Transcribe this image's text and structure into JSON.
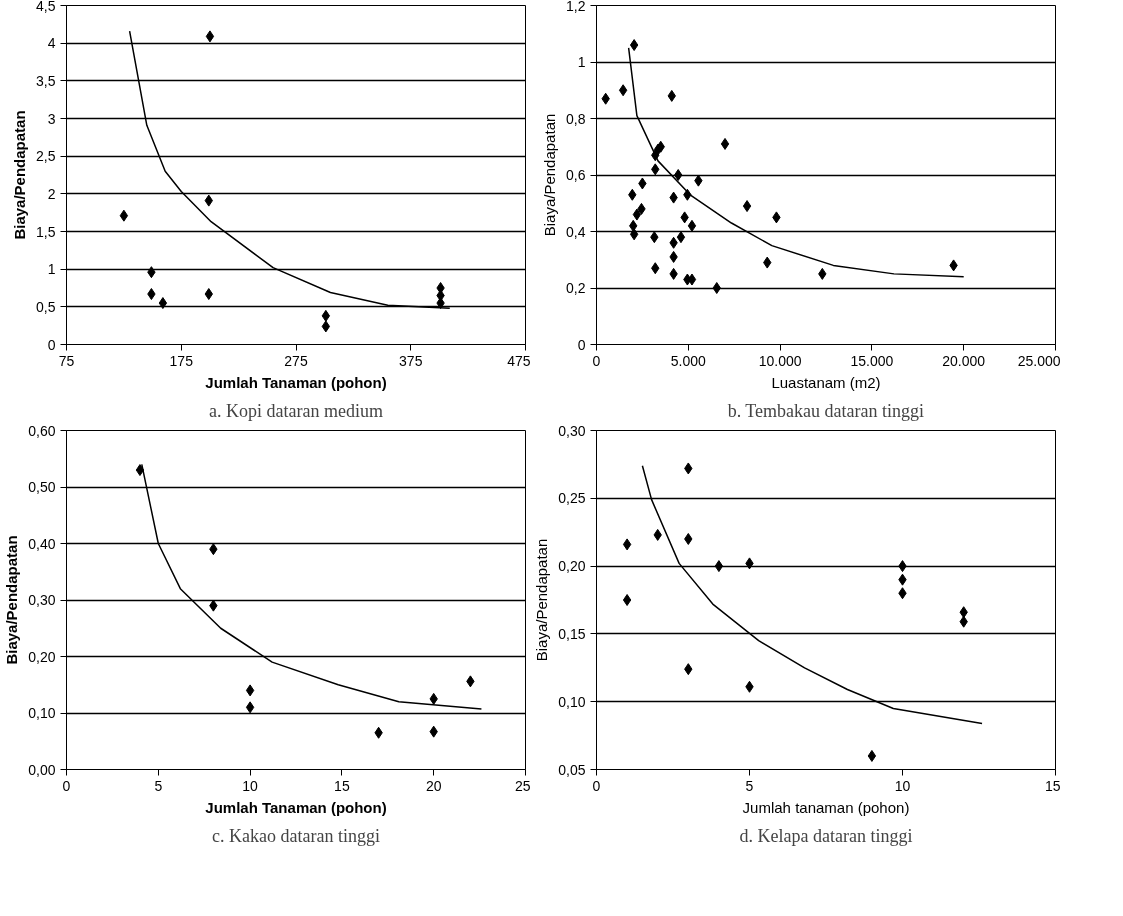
{
  "chart_data": [
    {
      "type": "scatter",
      "title": "a. Kopi dataran medium",
      "xlabel": "Jumlah Tanaman (pohon)",
      "ylabel": "Biaya/Pendapatan",
      "marker": "diamond",
      "grid": "y",
      "xlim": [
        75,
        475
      ],
      "xticks": [
        75,
        175,
        275,
        375,
        475
      ],
      "ylim": [
        0,
        4.5
      ],
      "yticks": [
        0,
        {
          "value": 0.5,
          "label": "0,5"
        },
        1,
        {
          "value": 1.5,
          "label": "1,5"
        },
        2,
        {
          "value": 2.5,
          "label": "2,5"
        },
        3,
        {
          "value": 3.5,
          "label": "3,5"
        },
        4,
        {
          "value": 4.5,
          "label": "4,5"
        }
      ],
      "series": [
        {
          "color": "#000000",
          "x": [
            125,
            149,
            149,
            159,
            200,
            199,
            199,
            301,
            301,
            401,
            401,
            401
          ],
          "values": [
            1.71,
            0.96,
            0.67,
            0.55,
            4.09,
            1.91,
            0.67,
            0.38,
            0.24,
            0.75,
            0.65,
            0.55
          ]
        },
        {
          "type": "line",
          "color": "#000000",
          "marker": "none",
          "x": [
            130,
            145,
            161,
            175,
            201,
            255,
            305,
            355,
            409
          ],
          "values": [
            4.16,
            2.91,
            2.3,
            2.03,
            1.63,
            1.02,
            0.69,
            0.52,
            0.48
          ]
        }
      ]
    },
    {
      "type": "scatter",
      "title": "b. Tembakau dataran tinggi",
      "xlabel": "Luastanam (m2)",
      "ylabel": "Biaya/Pendapatan",
      "marker": "diamond",
      "grid": "y",
      "xlim": [
        0,
        25000
      ],
      "xticks": [
        0,
        {
          "value": 5000,
          "label": "5.000"
        },
        {
          "value": 10000,
          "label": "10.000"
        },
        {
          "value": 15000,
          "label": "15.000"
        },
        {
          "value": 20000,
          "label": "20.000"
        },
        {
          "value": 25000,
          "label": "25.000"
        }
      ],
      "ylim": [
        0,
        1.2
      ],
      "yticks": [
        0,
        {
          "value": 0.2,
          "label": "0,2"
        },
        {
          "value": 0.4,
          "label": "0,4"
        },
        {
          "value": 0.6,
          "label": "0,6"
        },
        {
          "value": 0.8,
          "label": "0,8"
        },
        1,
        {
          "value": 1.2,
          "label": "1,2"
        }
      ],
      "series": [
        {
          "color": "#000000",
          "x": [
            500,
            1450,
            2050,
            4100,
            1950,
            2500,
            2200,
            2450,
            2000,
            2050,
            3200,
            3500,
            3350,
            3200,
            3150,
            3200,
            4200,
            4450,
            4950,
            5550,
            4800,
            5200,
            4200,
            4600,
            4200,
            4200,
            4950,
            5200,
            6550,
            7000,
            8200,
            9300,
            9800,
            12300,
            19450
          ],
          "values": [
            0.87,
            0.9,
            1.06,
            0.88,
            0.53,
            0.57,
            0.46,
            0.48,
            0.42,
            0.39,
            0.67,
            0.7,
            0.69,
            0.62,
            0.38,
            0.27,
            0.52,
            0.6,
            0.53,
            0.58,
            0.45,
            0.42,
            0.36,
            0.38,
            0.31,
            0.25,
            0.23,
            0.23,
            0.2,
            0.71,
            0.49,
            0.29,
            0.45,
            0.25,
            0.28
          ]
        },
        {
          "type": "line",
          "color": "#000000",
          "marker": "none",
          "x": [
            1750,
            2200,
            3350,
            5100,
            7350,
            9550,
            12900,
            16200,
            20000
          ],
          "values": [
            1.05,
            0.81,
            0.65,
            0.53,
            0.43,
            0.35,
            0.28,
            0.25,
            0.24
          ]
        }
      ]
    },
    {
      "type": "scatter",
      "title": "c. Kakao dataran tinggi",
      "xlabel": "Jumlah Tanaman (pohon)",
      "ylabel": "Biaya/Pendapatan",
      "marker": "diamond",
      "grid": "y",
      "xlim": [
        0,
        25
      ],
      "xticks": [
        0,
        5,
        10,
        15,
        20,
        25
      ],
      "ylim": [
        0,
        0.6
      ],
      "yticks": [
        {
          "value": 0,
          "label": "0,00"
        },
        {
          "value": 0.1,
          "label": "0,10"
        },
        {
          "value": 0.2,
          "label": "0,20"
        },
        {
          "value": 0.3,
          "label": "0,30"
        },
        {
          "value": 0.4,
          "label": "0,40"
        },
        {
          "value": 0.5,
          "label": "0,50"
        },
        {
          "value": 0.6,
          "label": "0,60"
        }
      ],
      "series": [
        {
          "color": "#000000",
          "x": [
            4,
            8,
            8,
            10,
            10,
            17,
            20,
            20,
            22
          ],
          "values": [
            0.53,
            0.39,
            0.29,
            0.14,
            0.11,
            0.065,
            0.125,
            0.067,
            0.156
          ]
        },
        {
          "type": "line",
          "color": "#000000",
          "marker": "none",
          "x": [
            4.1,
            5,
            6.2,
            8.4,
            11.2,
            14.8,
            18.1,
            22.6
          ],
          "values": [
            0.54,
            0.4,
            0.32,
            0.25,
            0.19,
            0.15,
            0.12,
            0.107
          ]
        }
      ]
    },
    {
      "type": "scatter",
      "title": "d. Kelapa dataran tinggi",
      "xlabel": "Jumlah tanaman (pohon)",
      "ylabel": "Biaya/Pendapatan",
      "marker": "diamond",
      "grid": "y",
      "xlim": [
        0,
        15
      ],
      "xticks": [
        0,
        5,
        10,
        15
      ],
      "ylim": [
        0.05,
        0.3
      ],
      "yticks": [
        {
          "value": 0.05,
          "label": "0,05"
        },
        {
          "value": 0.1,
          "label": "0,10"
        },
        {
          "value": 0.15,
          "label": "0,15"
        },
        {
          "value": 0.2,
          "label": "0,20"
        },
        {
          "value": 0.25,
          "label": "0,25"
        },
        {
          "value": 0.3,
          "label": "0,30"
        }
      ],
      "series": [
        {
          "color": "#000000",
          "x": [
            1,
            1,
            2,
            3,
            3,
            3,
            4,
            5,
            5,
            9,
            10,
            10,
            10,
            12,
            12
          ],
          "values": [
            0.216,
            0.175,
            0.223,
            0.272,
            0.22,
            0.124,
            0.2,
            0.202,
            0.111,
            0.06,
            0.2,
            0.19,
            0.18,
            0.166,
            0.159
          ]
        },
        {
          "type": "line",
          "color": "#000000",
          "marker": "none",
          "x": [
            1.5,
            1.8,
            2.7,
            3.8,
            5.3,
            6.8,
            8.2,
            9.7,
            12.6
          ],
          "values": [
            0.274,
            0.249,
            0.202,
            0.172,
            0.145,
            0.125,
            0.109,
            0.095,
            0.084
          ]
        }
      ]
    }
  ]
}
